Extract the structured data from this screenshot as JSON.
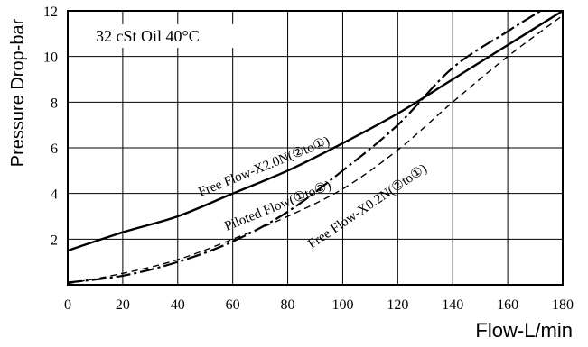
{
  "chart_data": {
    "type": "line",
    "title": "",
    "xlabel": "Flow-L/min",
    "ylabel": "Pressure Drop-bar",
    "xlim": [
      0,
      180
    ],
    "ylim": [
      0,
      12
    ],
    "xticks": [
      0,
      20,
      40,
      60,
      80,
      100,
      120,
      140,
      160,
      180
    ],
    "yticks": [
      2,
      4,
      6,
      8,
      10,
      12
    ],
    "grid": true,
    "annotation": "32 cSt Oil 40°C",
    "series": [
      {
        "name": "Free Flow-X2.0N(②to①)",
        "style": "solid",
        "x": [
          0,
          20,
          40,
          60,
          80,
          100,
          120,
          140,
          160,
          180
        ],
        "y": [
          1.5,
          2.3,
          3.0,
          4.0,
          5.0,
          6.2,
          7.5,
          9.0,
          10.5,
          12.0
        ]
      },
      {
        "name": "Piloted Flow(①to②)",
        "style": "dashdot",
        "x": [
          0,
          20,
          40,
          60,
          80,
          100,
          120,
          140,
          160,
          172
        ],
        "y": [
          0.1,
          0.4,
          1.0,
          1.9,
          3.2,
          5.0,
          7.0,
          9.5,
          11.1,
          12.0
        ]
      },
      {
        "name": "Free Flow-X0.2N(②to①)",
        "style": "dashed",
        "x": [
          0,
          20,
          40,
          60,
          80,
          100,
          120,
          140,
          160,
          180
        ],
        "y": [
          0.05,
          0.5,
          1.1,
          2.0,
          3.0,
          4.2,
          5.9,
          8.0,
          10.0,
          11.8
        ]
      }
    ]
  }
}
